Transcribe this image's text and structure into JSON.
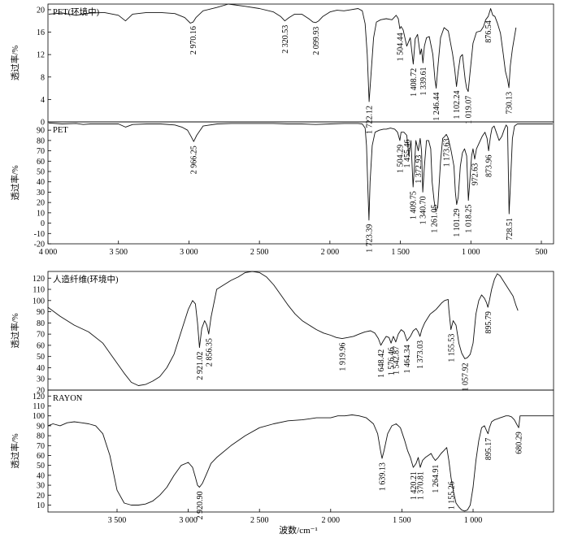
{
  "xlabel": "波数/cm⁻¹",
  "chart_data": [
    {
      "type": "line",
      "title": "PET(环境中)",
      "ylabel": "透过率/%",
      "xlim": [
        4000,
        400
      ],
      "ylim": [
        0,
        21
      ],
      "yticks": [
        0,
        4,
        8,
        12,
        16,
        20
      ],
      "xticks": [],
      "x": [
        3995,
        3900,
        3800,
        3700,
        3600,
        3500,
        3450,
        3400,
        3300,
        3200,
        3100,
        3030,
        2990,
        2970,
        2950,
        2900,
        2800,
        2720,
        2600,
        2500,
        2400,
        2350,
        2320,
        2290,
        2250,
        2200,
        2150,
        2120,
        2100,
        2080,
        2050,
        2000,
        1950,
        1900,
        1850,
        1800,
        1770,
        1750,
        1735,
        1722,
        1710,
        1690,
        1670,
        1640,
        1600,
        1560,
        1530,
        1515,
        1504,
        1495,
        1480,
        1455,
        1430,
        1409,
        1395,
        1378,
        1360,
        1350,
        1340,
        1330,
        1315,
        1295,
        1270,
        1255,
        1246,
        1235,
        1215,
        1190,
        1160,
        1130,
        1115,
        1102,
        1090,
        1075,
        1060,
        1040,
        1030,
        1019,
        1005,
        985,
        960,
        930,
        910,
        895,
        877,
        860,
        845,
        830,
        810,
        790,
        770,
        755,
        740,
        730,
        720,
        705,
        680
      ],
      "y": [
        19.2,
        19.4,
        19.0,
        19.4,
        19.5,
        19.0,
        18.0,
        19.2,
        19.5,
        19.5,
        19.3,
        18.6,
        17.6,
        17.8,
        18.6,
        19.8,
        20.4,
        21.0,
        20.6,
        20.2,
        19.6,
        18.8,
        18.0,
        18.6,
        19.2,
        19.2,
        18.4,
        17.8,
        17.7,
        18.0,
        18.8,
        19.6,
        19.9,
        19.8,
        20.0,
        20.2,
        19.8,
        17.5,
        12.0,
        3.6,
        8.0,
        15.0,
        17.8,
        18.2,
        18.4,
        18.2,
        19.0,
        18.4,
        16.6,
        17.0,
        16.4,
        13.5,
        15.0,
        10.3,
        14.8,
        15.6,
        12.0,
        13.0,
        10.5,
        13.5,
        15.0,
        15.2,
        12.0,
        7.5,
        6.0,
        9.5,
        15.0,
        16.8,
        16.2,
        12.2,
        9.5,
        6.3,
        9.0,
        11.6,
        12.0,
        7.5,
        6.0,
        5.4,
        9.0,
        14.0,
        16.0,
        16.2,
        17.0,
        18.2,
        18.8,
        20.2,
        19.0,
        18.8,
        17.5,
        15.8,
        12.0,
        9.0,
        7.5,
        6.1,
        10.0,
        13.0,
        16.8
      ],
      "annotations": [
        {
          "label": "2 970.16",
          "x": 2970.16,
          "y": 17.8
        },
        {
          "label": "2 320.53",
          "x": 2320.53,
          "y": 18.0
        },
        {
          "label": "2 099.93",
          "x": 2099.93,
          "y": 17.7
        },
        {
          "label": "1 722.12",
          "x": 1722.12,
          "y": 3.6
        },
        {
          "label": "1 504.44",
          "x": 1504.44,
          "y": 16.6
        },
        {
          "label": "1 408.72",
          "x": 1408.72,
          "y": 10.3
        },
        {
          "label": "1 339.61",
          "x": 1339.61,
          "y": 10.5
        },
        {
          "label": "1 246.44",
          "x": 1246.44,
          "y": 6.0
        },
        {
          "label": "1 102.24",
          "x": 1102.24,
          "y": 6.3
        },
        {
          "label": "1 019.07",
          "x": 1019.07,
          "y": 5.4
        },
        {
          "label": "876.54",
          "x": 876.54,
          "y": 18.8
        },
        {
          "label": "730.13",
          "x": 730.13,
          "y": 6.1
        }
      ]
    },
    {
      "type": "line",
      "title": "PET",
      "ylabel": "透过率/%",
      "xlim": [
        4000,
        400
      ],
      "ylim": [
        -20,
        98
      ],
      "yticks": [
        -20,
        -10,
        0,
        10,
        20,
        30,
        40,
        50,
        60,
        70,
        80,
        90
      ],
      "xticks": [
        4000,
        3500,
        3000,
        2500,
        2000,
        1500,
        1000,
        500
      ],
      "xticklabels": [
        "4 000",
        "3 500",
        "3 000",
        "2 500",
        "2 000",
        "1 500",
        "1 000",
        "500"
      ],
      "x": [
        3995,
        3900,
        3800,
        3750,
        3700,
        3600,
        3500,
        3450,
        3400,
        3300,
        3200,
        3100,
        3050,
        3010,
        2985,
        2966,
        2945,
        2900,
        2800,
        2700,
        2600,
        2500,
        2400,
        2300,
        2200,
        2100,
        2000,
        1900,
        1850,
        1800,
        1770,
        1750,
        1740,
        1730,
        1723,
        1715,
        1700,
        1680,
        1650,
        1620,
        1600,
        1570,
        1540,
        1520,
        1504,
        1495,
        1475,
        1455,
        1440,
        1425,
        1410,
        1400,
        1390,
        1373,
        1360,
        1350,
        1341,
        1330,
        1315,
        1300,
        1285,
        1275,
        1261,
        1250,
        1235,
        1215,
        1200,
        1185,
        1174,
        1160,
        1140,
        1120,
        1110,
        1101,
        1090,
        1075,
        1060,
        1045,
        1030,
        1018,
        1008,
        995,
        985,
        973,
        960,
        940,
        920,
        900,
        885,
        874,
        860,
        850,
        835,
        820,
        800,
        780,
        765,
        750,
        740,
        729,
        720,
        705,
        690,
        670,
        600,
        500,
        420
      ],
      "y": [
        97,
        96,
        96.5,
        95.5,
        96,
        96,
        96,
        93,
        95.5,
        96,
        96,
        95,
        93,
        90,
        84,
        79,
        85,
        94,
        96,
        96.5,
        96.5,
        96.5,
        96.5,
        96,
        96,
        95.5,
        96,
        96.5,
        96.5,
        96.5,
        96,
        92,
        75,
        30,
        3,
        40,
        75,
        88,
        90,
        91,
        91,
        92,
        91,
        88,
        80,
        88,
        88,
        85,
        65,
        80,
        35,
        55,
        80,
        70,
        82,
        70,
        30,
        55,
        80,
        80,
        72,
        40,
        22,
        12,
        15,
        60,
        82,
        84,
        86,
        82,
        70,
        55,
        30,
        18,
        25,
        55,
        68,
        72,
        65,
        22,
        40,
        65,
        72,
        62,
        72,
        78,
        84,
        88,
        82,
        70,
        85,
        92,
        94,
        88,
        80,
        84,
        90,
        95,
        93,
        9,
        35,
        82,
        94,
        96,
        96,
        96,
        96
      ],
      "annotations": [
        {
          "label": "2 966.25",
          "x": 2966.25,
          "y": 79
        },
        {
          "label": "1 723.39",
          "x": 1723.39,
          "y": 3
        },
        {
          "label": "1 504.29",
          "x": 1504.29,
          "y": 80
        },
        {
          "label": "1 455.46",
          "x": 1455.46,
          "y": 85
        },
        {
          "label": "1 409.75",
          "x": 1409.75,
          "y": 35
        },
        {
          "label": "1 372.93",
          "x": 1372.93,
          "y": 70
        },
        {
          "label": "1 340.70",
          "x": 1340.7,
          "y": 30
        },
        {
          "label": "1 261.05",
          "x": 1261.05,
          "y": 22
        },
        {
          "label": "1 173.63",
          "x": 1173.63,
          "y": 86
        },
        {
          "label": "1 101.29",
          "x": 1101.29,
          "y": 18
        },
        {
          "label": "1 018.25",
          "x": 1018.25,
          "y": 22
        },
        {
          "label": "972.63",
          "x": 972.63,
          "y": 62
        },
        {
          "label": "873.96",
          "x": 873.96,
          "y": 70
        },
        {
          "label": "728.51",
          "x": 728.51,
          "y": 9
        }
      ]
    },
    {
      "type": "line",
      "title": "人造纤维(环境中)",
      "ylabel": "透过率/%",
      "xlim": [
        3995,
        400
      ],
      "ylim": [
        20,
        126
      ],
      "yticks": [
        20,
        30,
        40,
        50,
        60,
        70,
        80,
        90,
        100,
        110,
        120
      ],
      "xticks": [],
      "x": [
        3995,
        3900,
        3800,
        3700,
        3600,
        3550,
        3500,
        3450,
        3400,
        3350,
        3300,
        3250,
        3200,
        3150,
        3100,
        3050,
        3000,
        2970,
        2950,
        2935,
        2921,
        2905,
        2885,
        2870,
        2856,
        2840,
        2800,
        2750,
        2700,
        2650,
        2600,
        2550,
        2500,
        2450,
        2400,
        2350,
        2300,
        2250,
        2200,
        2150,
        2100,
        2050,
        2000,
        1960,
        1920,
        1880,
        1840,
        1800,
        1760,
        1720,
        1690,
        1665,
        1648,
        1630,
        1610,
        1590,
        1576,
        1560,
        1543,
        1525,
        1505,
        1485,
        1464,
        1440,
        1420,
        1400,
        1385,
        1373,
        1360,
        1340,
        1320,
        1300,
        1280,
        1260,
        1240,
        1220,
        1200,
        1175,
        1170,
        1156,
        1140,
        1120,
        1100,
        1080,
        1058,
        1040,
        1020,
        1000,
        980,
        960,
        940,
        920,
        905,
        896,
        885,
        870,
        850,
        830,
        810,
        790,
        770,
        750,
        720,
        700,
        685
      ],
      "y": [
        94,
        86,
        78,
        72,
        62,
        53,
        44,
        35,
        27,
        24,
        25,
        28,
        32,
        40,
        52,
        72,
        92,
        100,
        97,
        80,
        58,
        75,
        82,
        78,
        70,
        85,
        110,
        114,
        118,
        121,
        125,
        126,
        125,
        121,
        114,
        105,
        96,
        88,
        82,
        78,
        74,
        71,
        69,
        67,
        66,
        67,
        68,
        70,
        72,
        73,
        71,
        66,
        60,
        64,
        68,
        67,
        62,
        68,
        63,
        70,
        74,
        72,
        64,
        68,
        73,
        75,
        72,
        68,
        74,
        80,
        84,
        88,
        90,
        92,
        95,
        98,
        100,
        101,
        92,
        74,
        82,
        78,
        62,
        53,
        48,
        49,
        52,
        62,
        88,
        100,
        105,
        102,
        98,
        94,
        100,
        110,
        119,
        124,
        122,
        118,
        114,
        110,
        104,
        96,
        91
      ],
      "annotations": [
        {
          "label": "2 921.02",
          "x": 2921.02,
          "y": 58
        },
        {
          "label": "2 856.35",
          "x": 2856.35,
          "y": 70
        },
        {
          "label": "1 919.96",
          "x": 1919.96,
          "y": 66
        },
        {
          "label": "1 648.42",
          "x": 1648.42,
          "y": 60
        },
        {
          "label": "1 576.46",
          "x": 1576.46,
          "y": 62
        },
        {
          "label": "1 542.87",
          "x": 1542.87,
          "y": 63
        },
        {
          "label": "1 464.34",
          "x": 1464.34,
          "y": 64
        },
        {
          "label": "1 373.03",
          "x": 1373.03,
          "y": 68
        },
        {
          "label": "1 155.53",
          "x": 1155.53,
          "y": 74
        },
        {
          "label": "1 057.92",
          "x": 1057.92,
          "y": 48
        },
        {
          "label": "895.79",
          "x": 895.79,
          "y": 94
        }
      ]
    },
    {
      "type": "line",
      "title": "RAYON",
      "ylabel": "透过率/%",
      "xlim": [
        3995,
        400
      ],
      "ylim": [
        3,
        126
      ],
      "yticks": [
        10,
        20,
        30,
        40,
        50,
        60,
        70,
        80,
        90,
        100,
        110,
        120
      ],
      "xticks": [
        3500,
        3000,
        2500,
        2000,
        1500,
        1000
      ],
      "xticklabels": [
        "3 500",
        "3 000",
        "2 500",
        "2 000",
        "1 500",
        "1 000"
      ],
      "x": [
        3995,
        3950,
        3900,
        3850,
        3800,
        3750,
        3700,
        3650,
        3600,
        3550,
        3500,
        3450,
        3400,
        3350,
        3300,
        3250,
        3200,
        3150,
        3100,
        3050,
        3000,
        2970,
        2950,
        2935,
        2921,
        2900,
        2870,
        2840,
        2800,
        2700,
        2600,
        2500,
        2400,
        2300,
        2200,
        2100,
        2000,
        1950,
        1900,
        1850,
        1800,
        1750,
        1700,
        1670,
        1650,
        1639,
        1625,
        1600,
        1570,
        1540,
        1510,
        1480,
        1460,
        1440,
        1420,
        1400,
        1385,
        1371,
        1355,
        1335,
        1315,
        1295,
        1280,
        1265,
        1245,
        1225,
        1205,
        1185,
        1170,
        1155,
        1140,
        1120,
        1100,
        1080,
        1060,
        1040,
        1020,
        1000,
        980,
        960,
        940,
        920,
        905,
        895,
        885,
        870,
        850,
        830,
        810,
        790,
        770,
        750,
        730,
        710,
        695,
        680,
        670,
        660,
        600,
        500,
        400
      ],
      "y": [
        90,
        92,
        90,
        93,
        94,
        93,
        92,
        90,
        82,
        60,
        25,
        12,
        10,
        10,
        11,
        14,
        20,
        28,
        40,
        50,
        53,
        48,
        38,
        30,
        28,
        32,
        42,
        52,
        58,
        70,
        80,
        88,
        92,
        95,
        96,
        98,
        98,
        100,
        100,
        101,
        100,
        98,
        92,
        82,
        65,
        57,
        65,
        82,
        90,
        92,
        88,
        75,
        65,
        58,
        48,
        52,
        58,
        48,
        55,
        58,
        60,
        62,
        58,
        55,
        58,
        62,
        65,
        68,
        55,
        38,
        25,
        12,
        8,
        5,
        4,
        5,
        10,
        28,
        55,
        75,
        88,
        90,
        85,
        82,
        88,
        94,
        96,
        97,
        98,
        99,
        100,
        100,
        99,
        96,
        92,
        88,
        100,
        100,
        100,
        100,
        100
      ],
      "annotations": [
        {
          "label": "2 920.90",
          "x": 2920.9,
          "y": 28
        },
        {
          "label": "1 639.13",
          "x": 1639.13,
          "y": 57
        },
        {
          "label": "1 420.21",
          "x": 1420.21,
          "y": 48
        },
        {
          "label": "1 370.81",
          "x": 1370.81,
          "y": 48
        },
        {
          "label": "1 264.91",
          "x": 1264.91,
          "y": 55
        },
        {
          "label": "1 155.26",
          "x": 1155.26,
          "y": 38
        },
        {
          "label": "895.17",
          "x": 895.17,
          "y": 82
        },
        {
          "label": "680.29",
          "x": 680.29,
          "y": 88
        }
      ]
    }
  ]
}
